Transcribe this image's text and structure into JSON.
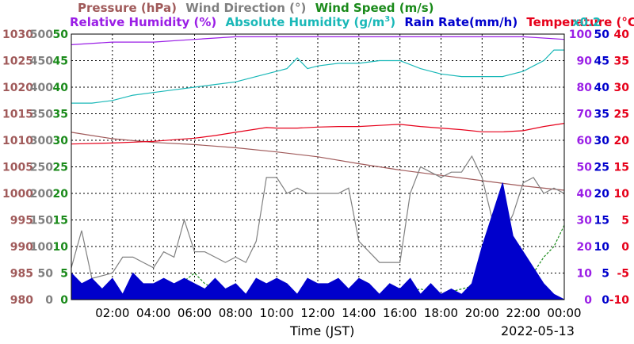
{
  "legend": {
    "row1": [
      {
        "label": "Pressure (hPa)",
        "color": "#a05a5a"
      },
      {
        "label": "Wind Direction (°)",
        "color": "#808080"
      },
      {
        "label": "Wind Speed (m/s)",
        "color": "#1a8a1a"
      }
    ],
    "row2": [
      {
        "label": "Relative Humidity (%)",
        "color": "#9a1ee6"
      },
      {
        "label": "Absolute Humidity (g/m",
        "sup": "3",
        "close": ")",
        "color": "#1ab8b8"
      },
      {
        "label": "Rain Rate(mm/h)",
        "color": "#0000cc"
      },
      {
        "label": "Temperature (°C)",
        "color": "#e6001a"
      }
    ],
    "scale_note": {
      "label": "x0.2",
      "color": "#1ab8b8"
    }
  },
  "xaxis": {
    "title": "Time (JST)",
    "date": "2022-05-13"
  },
  "chart_data": {
    "type": "line",
    "x_ticks": [
      "02:00",
      "04:00",
      "06:00",
      "08:00",
      "10:00",
      "12:00",
      "14:00",
      "16:00",
      "18:00",
      "20:00",
      "22:00",
      "00:00"
    ],
    "xlim_hours": [
      0,
      24
    ],
    "axes": {
      "pressure": {
        "ticks": [
          "1030",
          "1025",
          "1020",
          "1015",
          "1010",
          "1005",
          "1000",
          "995",
          "990",
          "985",
          "980"
        ],
        "range": [
          980,
          1030
        ],
        "color": "#a05a5a"
      },
      "wind_direction": {
        "ticks": [
          "500",
          "450",
          "400",
          "350",
          "300",
          "250",
          "200",
          "150",
          "100",
          "50",
          "0"
        ],
        "range": [
          0,
          500
        ],
        "color": "#808080"
      },
      "wind_speed": {
        "ticks": [
          "50",
          "45",
          "40",
          "35",
          "30",
          "25",
          "20",
          "15",
          "10",
          "5",
          "0"
        ],
        "range": [
          0,
          50
        ],
        "color": "#1a8a1a"
      },
      "humidity": {
        "ticks": [
          "100",
          "90",
          "80",
          "70",
          "60",
          "50",
          "40",
          "30",
          "20",
          "10",
          "0"
        ],
        "range": [
          0,
          100
        ],
        "color": "#9a1ee6"
      },
      "rain_rate": {
        "ticks": [
          "50",
          "45",
          "40",
          "35",
          "30",
          "25",
          "20",
          "15",
          "10",
          "5",
          "0"
        ],
        "range": [
          0,
          50
        ],
        "color": "#0000cc"
      },
      "temperature": {
        "ticks": [
          "40",
          "35",
          "30",
          "25",
          "20",
          "15",
          "10",
          "5",
          "0",
          "-5",
          "-10"
        ],
        "range": [
          -10,
          40
        ],
        "color": "#e6001a"
      }
    },
    "series": [
      {
        "name": "Pressure (hPa)",
        "axis": "pressure",
        "x": [
          0,
          2,
          4,
          6,
          8,
          10,
          12,
          14,
          16,
          18,
          20,
          22,
          24
        ],
        "y": [
          1011.5,
          1010.3,
          1009.6,
          1009.2,
          1008.6,
          1007.8,
          1006.9,
          1005.6,
          1004.4,
          1003.4,
          1002.4,
          1001.4,
          1000.6
        ]
      },
      {
        "name": "Wind Direction (°)",
        "axis": "wind_direction",
        "x": [
          0,
          0.5,
          1,
          2,
          2.5,
          3,
          3.5,
          4,
          4.5,
          5,
          5.5,
          6,
          6.5,
          7,
          7.5,
          8,
          8.5,
          9,
          9.5,
          10,
          10.5,
          11,
          11.5,
          12,
          12.5,
          13,
          13.5,
          14,
          14.5,
          15,
          15.5,
          16,
          16.5,
          17,
          17.5,
          18,
          18.5,
          19,
          19.5,
          20,
          20.5,
          21,
          21.5,
          22,
          22.5,
          23,
          23.5,
          24
        ],
        "y": [
          60,
          130,
          40,
          50,
          80,
          80,
          70,
          60,
          90,
          80,
          150,
          90,
          90,
          80,
          70,
          80,
          70,
          110,
          230,
          230,
          200,
          210,
          200,
          200,
          200,
          200,
          210,
          110,
          90,
          70,
          70,
          70,
          200,
          250,
          240,
          230,
          240,
          240,
          270,
          230,
          150,
          120,
          160,
          220,
          230,
          200,
          210,
          200
        ]
      },
      {
        "name": "Wind Speed (m/s)",
        "axis": "wind_speed",
        "x": [
          0,
          2,
          4,
          5,
          6,
          6.5,
          7,
          8,
          9,
          10,
          11,
          12,
          13,
          14,
          15,
          16,
          17,
          18,
          19,
          20,
          21,
          21.5,
          22,
          22.5,
          23,
          23.5,
          24
        ],
        "y": [
          0.5,
          0.5,
          0.5,
          2,
          5,
          3,
          2,
          1,
          0.5,
          0.5,
          1,
          0.5,
          1,
          1,
          0.5,
          1,
          2,
          1,
          2,
          3,
          1,
          2,
          2,
          5,
          8,
          10,
          14
        ]
      },
      {
        "name": "Relative Humidity (%)",
        "axis": "humidity",
        "x": [
          0,
          2,
          4,
          6,
          8,
          10,
          12,
          14,
          16,
          18,
          20,
          22,
          24
        ],
        "y": [
          96,
          97,
          97,
          98,
          99,
          99,
          99,
          99,
          99,
          99,
          99,
          99,
          98
        ]
      },
      {
        "name": "Absolute Humidity (g/m3)",
        "axis": "humidity",
        "x": [
          0,
          1,
          2,
          3,
          4,
          5,
          6,
          7,
          8,
          9,
          10,
          10.5,
          11,
          11.5,
          12,
          13,
          14,
          15,
          16,
          17,
          17.5,
          18,
          19,
          20,
          21,
          22,
          22.5,
          23,
          23.5,
          24
        ],
        "y": [
          74,
          74,
          75,
          77,
          78,
          79,
          80,
          81,
          82,
          84,
          86,
          87,
          91,
          87,
          88,
          89,
          89,
          90,
          90,
          87,
          86,
          85,
          84,
          84,
          84,
          86,
          88,
          90,
          94,
          94
        ]
      },
      {
        "name": "Rain Rate(mm/h)",
        "axis": "rain_rate",
        "x": [
          0,
          0.5,
          1,
          1.5,
          2,
          2.5,
          3,
          3.5,
          4,
          4.5,
          5,
          5.5,
          6,
          6.5,
          7,
          7.5,
          8,
          8.5,
          9,
          9.5,
          10,
          10.5,
          11,
          11.5,
          12,
          12.5,
          13,
          13.5,
          14,
          14.5,
          15,
          15.5,
          16,
          16.5,
          17,
          17.5,
          18,
          18.5,
          19,
          19.5,
          20,
          20.5,
          21,
          21.5,
          22,
          22.5,
          23,
          23.5,
          24
        ],
        "y": [
          5,
          3,
          4,
          2,
          4,
          1,
          5,
          3,
          3,
          4,
          3,
          4,
          3,
          2,
          4,
          2,
          3,
          1,
          4,
          3,
          4,
          3,
          1,
          4,
          3,
          3,
          4,
          2,
          4,
          3,
          1,
          3,
          2,
          4,
          1,
          3,
          1,
          2,
          1,
          3,
          10,
          16,
          22,
          12,
          9,
          6,
          3,
          1,
          0
        ]
      },
      {
        "name": "Temperature (°C)",
        "axis": "temperature",
        "x": [
          0,
          2,
          4,
          6,
          7,
          8,
          9,
          9.5,
          10,
          11,
          12,
          13,
          14,
          15,
          16,
          17,
          18,
          19,
          20,
          21,
          22,
          23,
          24
        ],
        "y": [
          19.3,
          19.5,
          19.8,
          20.4,
          20.9,
          21.5,
          22.1,
          22.4,
          22.3,
          22.3,
          22.5,
          22.6,
          22.6,
          22.8,
          23.0,
          22.6,
          22.3,
          22.0,
          21.6,
          21.6,
          21.8,
          22.6,
          23.2
        ]
      }
    ],
    "grid": true
  }
}
